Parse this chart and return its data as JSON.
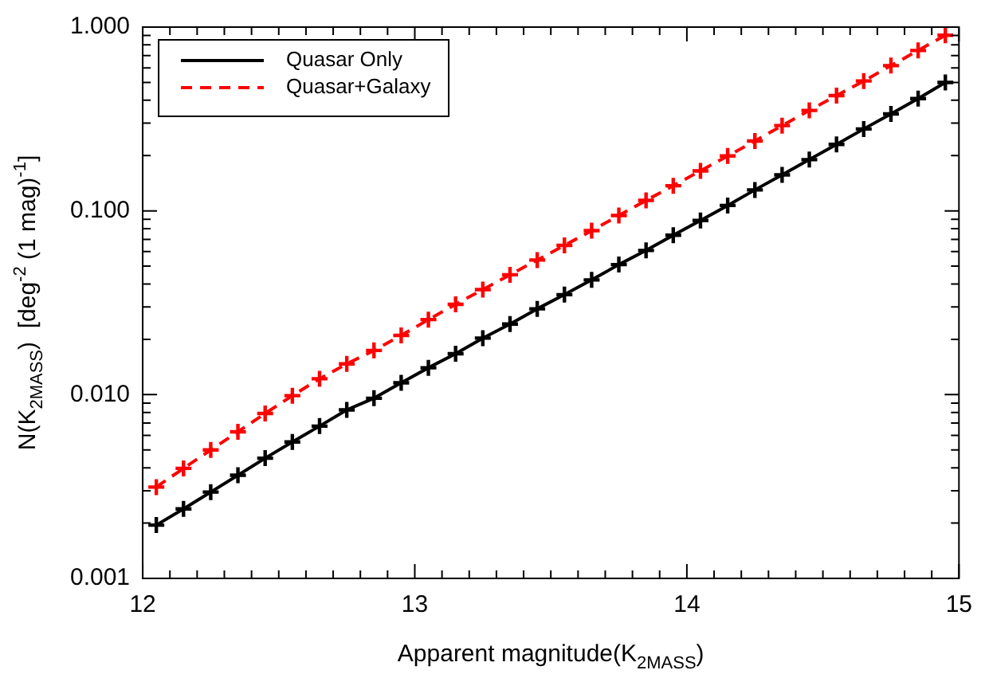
{
  "chart_data": {
    "type": "line",
    "xlabel": "Apparent magnitude(K$_{2MASS}$)",
    "ylabel": "N(K$_{2MASS}$)  [deg$^{-2}$ (1 mag)$^{-1}$]",
    "x": [
      12.05,
      12.15,
      12.25,
      12.35,
      12.45,
      12.55,
      12.65,
      12.75,
      12.85,
      12.95,
      13.05,
      13.15,
      13.25,
      13.35,
      13.45,
      13.55,
      13.65,
      13.75,
      13.85,
      13.95,
      14.05,
      14.15,
      14.25,
      14.35,
      14.45,
      14.55,
      14.65,
      14.75,
      14.85,
      14.95
    ],
    "series": [
      {
        "name": "Quasar Only",
        "color": "#000000",
        "line_style": "solid",
        "values": [
          0.00195,
          0.00239,
          0.00295,
          0.00364,
          0.00451,
          0.00553,
          0.00674,
          0.00826,
          0.00956,
          0.0116,
          0.014,
          0.0167,
          0.0203,
          0.0242,
          0.0293,
          0.035,
          0.0421,
          0.051,
          0.0609,
          0.0737,
          0.0887,
          0.107,
          0.13,
          0.157,
          0.19,
          0.23,
          0.279,
          0.337,
          0.408,
          0.5
        ]
      },
      {
        "name": "Quasar+Galaxy",
        "color": "#ff0000",
        "line_style": "dashed",
        "values": [
          0.00314,
          0.00397,
          0.005,
          0.00628,
          0.0079,
          0.00987,
          0.0122,
          0.0147,
          0.0174,
          0.021,
          0.0256,
          0.031,
          0.0373,
          0.0449,
          0.054,
          0.0649,
          0.078,
          0.0944,
          0.114,
          0.137,
          0.165,
          0.199,
          0.24,
          0.291,
          0.352,
          0.424,
          0.509,
          0.617,
          0.746,
          0.903
        ]
      }
    ],
    "marker": "cross",
    "log": "y",
    "legend": "top left",
    "xlim": [
      12,
      15
    ],
    "ylim": [
      0.001,
      1
    ],
    "xticks": [
      12,
      {
        "value": 12.1,
        "label": null
      },
      {
        "value": 12.2,
        "label": null
      },
      {
        "value": 12.3,
        "label": null
      },
      {
        "value": 12.4,
        "label": null
      },
      {
        "value": 12.5,
        "label": null
      },
      {
        "value": 12.6,
        "label": null
      },
      {
        "value": 12.7,
        "label": null
      },
      {
        "value": 12.8,
        "label": null
      },
      {
        "value": 12.9,
        "label": null
      },
      13,
      {
        "value": 13.1,
        "label": null
      },
      {
        "value": 13.2,
        "label": null
      },
      {
        "value": 13.3,
        "label": null
      },
      {
        "value": 13.4,
        "label": null
      },
      {
        "value": 13.5,
        "label": null
      },
      {
        "value": 13.6,
        "label": null
      },
      {
        "value": 13.7,
        "label": null
      },
      {
        "value": 13.8,
        "label": null
      },
      {
        "value": 13.9,
        "label": null
      },
      14,
      {
        "value": 14.1,
        "label": null
      },
      {
        "value": 14.2,
        "label": null
      },
      {
        "value": 14.3,
        "label": null
      },
      {
        "value": 14.4,
        "label": null
      },
      {
        "value": 14.5,
        "label": null
      },
      {
        "value": 14.6,
        "label": null
      },
      {
        "value": 14.7,
        "label": null
      },
      {
        "value": 14.8,
        "label": null
      },
      {
        "value": 14.9,
        "label": null
      },
      15
    ],
    "yticks": [
      {
        "value": 0.001,
        "label": "0.001"
      },
      {
        "value": 0.002,
        "label": null
      },
      {
        "value": 0.003,
        "label": null
      },
      {
        "value": 0.004,
        "label": null
      },
      {
        "value": 0.005,
        "label": null
      },
      {
        "value": 0.006,
        "label": null
      },
      {
        "value": 0.007,
        "label": null
      },
      {
        "value": 0.008,
        "label": null
      },
      {
        "value": 0.009,
        "label": null
      },
      {
        "value": 0.01,
        "label": "0.010"
      },
      {
        "value": 0.02,
        "label": null
      },
      {
        "value": 0.03,
        "label": null
      },
      {
        "value": 0.04,
        "label": null
      },
      {
        "value": 0.05,
        "label": null
      },
      {
        "value": 0.06,
        "label": null
      },
      {
        "value": 0.07,
        "label": null
      },
      {
        "value": 0.08,
        "label": null
      },
      {
        "value": 0.09,
        "label": null
      },
      {
        "value": 0.1,
        "label": "0.100"
      },
      {
        "value": 0.2,
        "label": null
      },
      {
        "value": 0.3,
        "label": null
      },
      {
        "value": 0.4,
        "label": null
      },
      {
        "value": 0.5,
        "label": null
      },
      {
        "value": 0.6,
        "label": null
      },
      {
        "value": 0.7,
        "label": null
      },
      {
        "value": 0.8,
        "label": null
      },
      {
        "value": 0.9,
        "label": null
      },
      {
        "value": 1,
        "label": "1.000"
      }
    ]
  }
}
